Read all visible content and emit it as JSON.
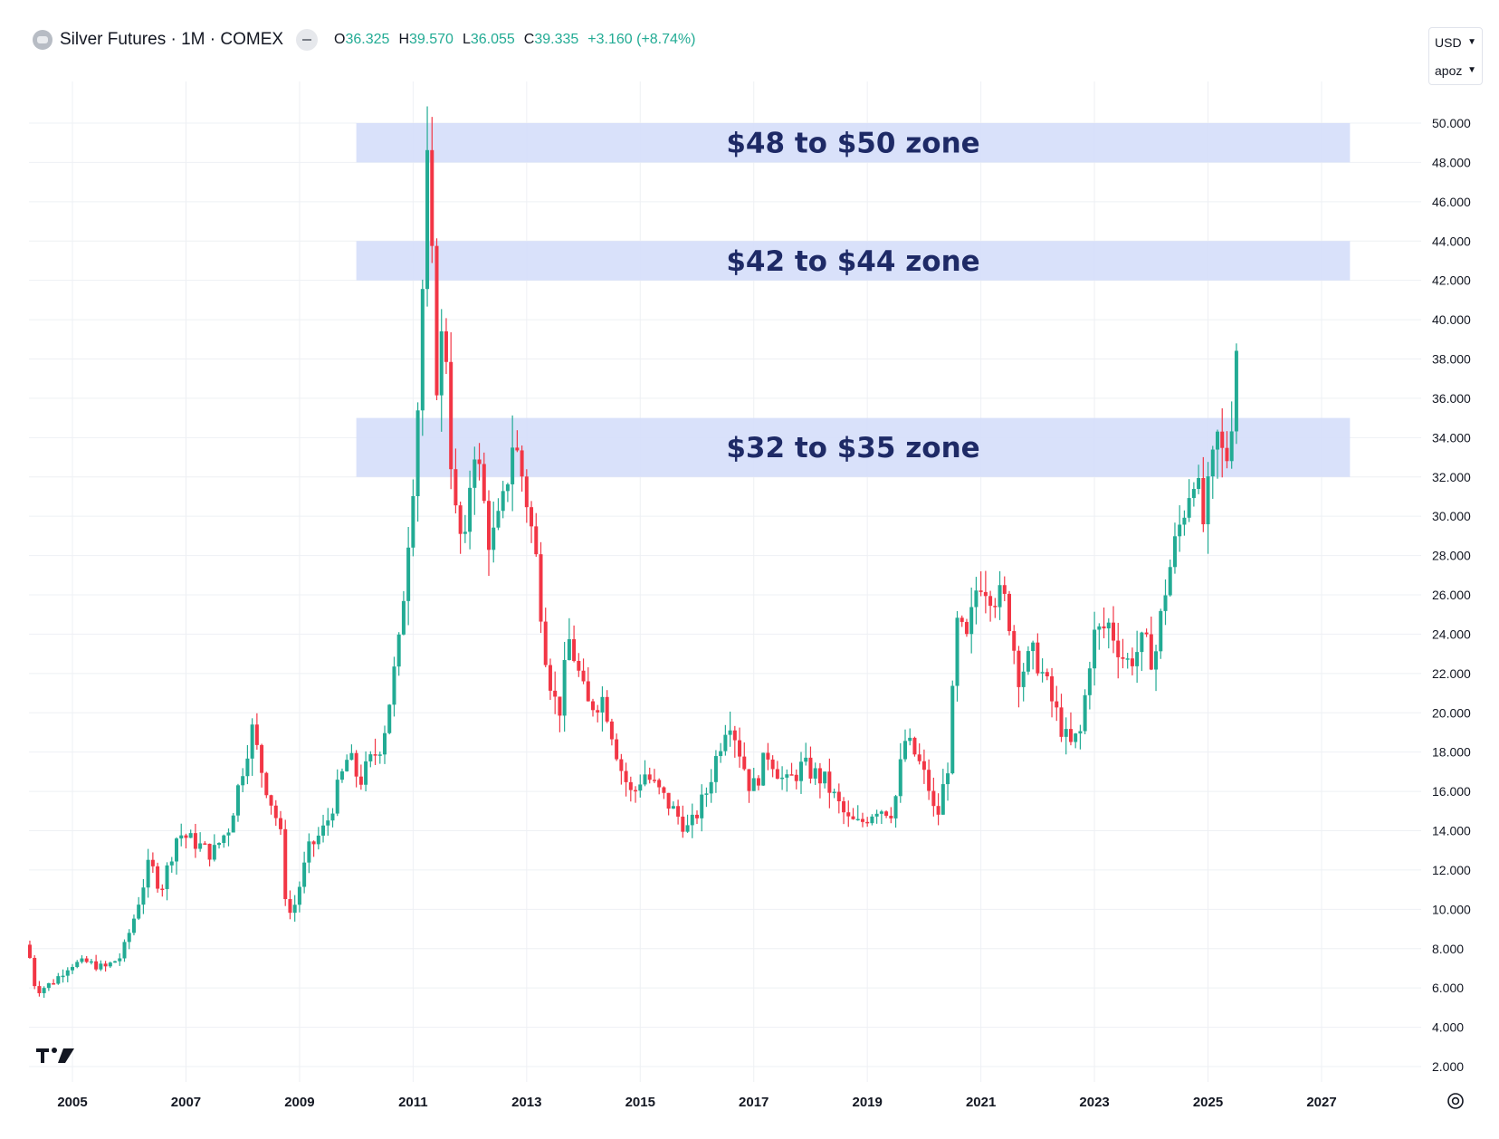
{
  "header": {
    "title": "Silver Futures · 1M · COMEX",
    "open_key": "O",
    "open": "36.325",
    "high_key": "H",
    "high": "39.570",
    "low_key": "L",
    "low": "36.055",
    "close_key": "C",
    "close": "39.335",
    "change": "+3.160 (+8.74%)"
  },
  "controls": {
    "currency": "USD",
    "scale": "apoz"
  },
  "colors": {
    "up": "#22ab94",
    "down": "#f23645",
    "zone_fill": "#d5defa",
    "zone_text": "#1e2a66"
  },
  "icons": [
    "symbol-icon",
    "tradingview-logo-icon",
    "settings-icon",
    "chevron-down-icon"
  ],
  "chart_data": {
    "type": "candlestick",
    "title": "Silver Futures · 1M · COMEX",
    "xlim": [
      2004.2,
      2028.0
    ],
    "ylim": [
      2.0,
      50.0
    ],
    "y_ticks": [
      "2.000",
      "4.000",
      "6.000",
      "8.000",
      "10.000",
      "12.000",
      "14.000",
      "16.000",
      "18.000",
      "20.000",
      "22.000",
      "24.000",
      "26.000",
      "28.000",
      "30.000",
      "32.000",
      "34.000",
      "36.000",
      "38.000",
      "40.000",
      "42.000",
      "44.000",
      "46.000",
      "48.000",
      "50.000"
    ],
    "x_ticks": [
      "2005",
      "2007",
      "2009",
      "2011",
      "2013",
      "2015",
      "2017",
      "2019",
      "2021",
      "2023",
      "2025",
      "2027"
    ],
    "zones": [
      {
        "label": "$48 to $50 zone",
        "low": 48,
        "high": 50,
        "x_start": 2010.0,
        "x_end": 2027.5
      },
      {
        "label": "$42 to $44 zone",
        "low": 42,
        "high": 44,
        "x_start": 2010.0,
        "x_end": 2027.5
      },
      {
        "label": "$32 to $35 zone",
        "low": 32,
        "high": 35,
        "x_start": 2010.0,
        "x_end": 2027.5
      }
    ],
    "price_path": [
      [
        2004.25,
        8.2
      ],
      [
        2004.4,
        5.8
      ],
      [
        2004.7,
        6.3
      ],
      [
        2005.0,
        7.2
      ],
      [
        2005.3,
        7.3
      ],
      [
        2005.6,
        7.0
      ],
      [
        2005.9,
        7.6
      ],
      [
        2006.1,
        9.3
      ],
      [
        2006.4,
        12.4
      ],
      [
        2006.6,
        11.0
      ],
      [
        2006.9,
        13.9
      ],
      [
        2007.2,
        13.4
      ],
      [
        2007.5,
        12.8
      ],
      [
        2007.8,
        14.2
      ],
      [
        2008.2,
        19.2
      ],
      [
        2008.4,
        16.8
      ],
      [
        2008.7,
        14.0
      ],
      [
        2008.8,
        10.5
      ],
      [
        2008.9,
        9.6
      ],
      [
        2009.2,
        13.0
      ],
      [
        2009.5,
        14.2
      ],
      [
        2009.9,
        17.8
      ],
      [
        2010.1,
        16.5
      ],
      [
        2010.5,
        18.6
      ],
      [
        2010.8,
        23.5
      ],
      [
        2011.0,
        30.6
      ],
      [
        2011.1,
        34.0
      ],
      [
        2011.3,
        48.0
      ],
      [
        2011.45,
        37.0
      ],
      [
        2011.6,
        40.0
      ],
      [
        2011.75,
        30.5
      ],
      [
        2011.95,
        28.0
      ],
      [
        2012.1,
        34.2
      ],
      [
        2012.4,
        28.5
      ],
      [
        2012.6,
        30.0
      ],
      [
        2012.8,
        34.0
      ],
      [
        2013.0,
        31.6
      ],
      [
        2013.2,
        28.0
      ],
      [
        2013.4,
        22.5
      ],
      [
        2013.6,
        19.8
      ],
      [
        2013.8,
        23.8
      ],
      [
        2014.1,
        20.3
      ],
      [
        2014.4,
        20.8
      ],
      [
        2014.7,
        17.2
      ],
      [
        2014.9,
        15.7
      ],
      [
        2015.1,
        17.0
      ],
      [
        2015.5,
        15.5
      ],
      [
        2015.9,
        14.0
      ],
      [
        2016.2,
        15.9
      ],
      [
        2016.6,
        20.0
      ],
      [
        2016.8,
        18.0
      ],
      [
        2017.0,
        16.0
      ],
      [
        2017.3,
        18.0
      ],
      [
        2017.6,
        16.3
      ],
      [
        2017.9,
        17.3
      ],
      [
        2018.3,
        16.5
      ],
      [
        2018.7,
        14.5
      ],
      [
        2018.9,
        14.3
      ],
      [
        2019.2,
        15.2
      ],
      [
        2019.5,
        15.0
      ],
      [
        2019.7,
        18.6
      ],
      [
        2019.9,
        17.8
      ],
      [
        2020.15,
        16.0
      ],
      [
        2020.25,
        14.3
      ],
      [
        2020.5,
        18.0
      ],
      [
        2020.6,
        24.5
      ],
      [
        2020.8,
        23.5
      ],
      [
        2021.0,
        27.0
      ],
      [
        2021.3,
        26.0
      ],
      [
        2021.5,
        25.5
      ],
      [
        2021.7,
        22.0
      ],
      [
        2022.0,
        23.0
      ],
      [
        2022.3,
        20.5
      ],
      [
        2022.6,
        18.2
      ],
      [
        2022.8,
        19.0
      ],
      [
        2023.0,
        23.8
      ],
      [
        2023.3,
        24.5
      ],
      [
        2023.6,
        22.5
      ],
      [
        2023.9,
        23.5
      ],
      [
        2024.1,
        22.7
      ],
      [
        2024.3,
        26.5
      ],
      [
        2024.5,
        29.0
      ],
      [
        2024.8,
        32.5
      ],
      [
        2024.95,
        29.5
      ],
      [
        2025.1,
        32.0
      ],
      [
        2025.2,
        34.0
      ],
      [
        2025.35,
        32.5
      ],
      [
        2025.5,
        36.3
      ],
      [
        2025.55,
        39.3
      ]
    ]
  }
}
